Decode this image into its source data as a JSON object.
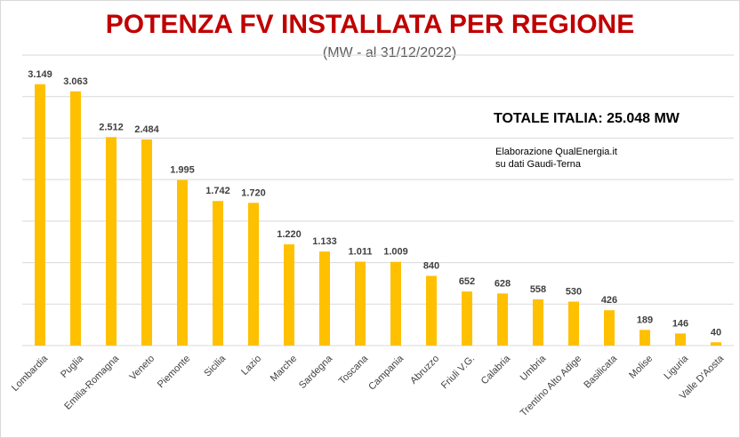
{
  "chart_data": {
    "type": "bar",
    "title": "POTENZA FV INSTALLATA PER REGIONE",
    "subtitle": "(MW - al 31/12/2022)",
    "xlabel": "",
    "ylabel": "",
    "ylim": [
      0,
      3500
    ],
    "grid": true,
    "legend": "none",
    "categories": [
      "Lombardia",
      "Puglia",
      "Emilia-Romagna",
      "Veneto",
      "Piemonte",
      "Sicilia",
      "Lazio",
      "Marche",
      "Sardegna",
      "Toscana",
      "Campania",
      "Abruzzo",
      "Friuli V.G.",
      "Calabria",
      "Umbria",
      "Trentino Alto Adige",
      "Basilicata",
      "Molise",
      "Liguria",
      "Valle D'Aosta"
    ],
    "values": [
      3149,
      3063,
      2512,
      2484,
      1995,
      1742,
      1720,
      1220,
      1133,
      1011,
      1009,
      840,
      652,
      628,
      558,
      530,
      426,
      189,
      146,
      40
    ],
    "value_labels": [
      "3.149",
      "3.063",
      "2.512",
      "2.484",
      "1.995",
      "1.742",
      "1.720",
      "1.220",
      "1.133",
      "1.011",
      "1.009",
      "840",
      "652",
      "628",
      "558",
      "530",
      "426",
      "189",
      "146",
      "40"
    ],
    "annotations": {
      "total": "TOTALE ITALIA:  25.048 MW",
      "note_line1": "Elaborazione QualEnergia.it",
      "note_line2": "su dati Gaudi-Terna"
    },
    "colors": {
      "bar": "#ffc000",
      "grid": "#d9d9d9",
      "title": "#c00000"
    }
  }
}
